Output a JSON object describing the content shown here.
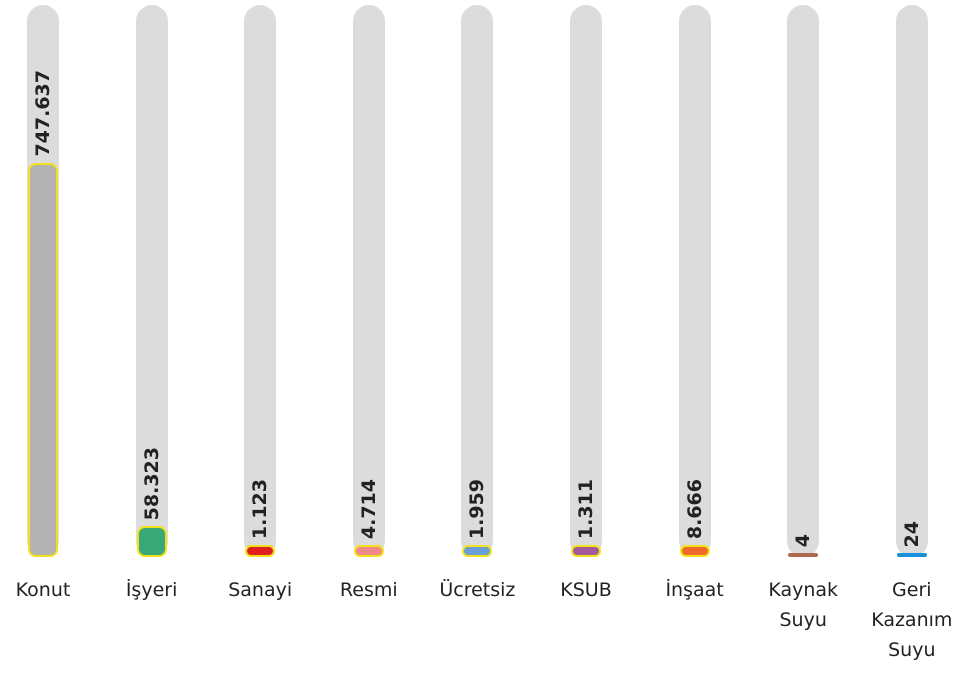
{
  "chart_data": {
    "type": "bar",
    "categories": [
      "Konut",
      "İşyeri",
      "Sanayi",
      "Resmi",
      "Ücretsiz",
      "KSUB",
      "İnşaat",
      "Kaynak Suyu",
      "Geri Kazanım Suyu"
    ],
    "values": [
      747637,
      58323,
      1123,
      4714,
      1959,
      1311,
      8666,
      4,
      24
    ],
    "value_labels": [
      "747.637",
      "58.323",
      "1.123",
      "4.714",
      "1.959",
      "1.311",
      "8.666",
      "4",
      "24"
    ],
    "colors": [
      "#b3b3b3",
      "#38a876",
      "#e0201c",
      "#f08a8a",
      "#6a9fd8",
      "#a45a9a",
      "#f06a28",
      "#b06a50",
      "#1b8fd8"
    ]
  }
}
